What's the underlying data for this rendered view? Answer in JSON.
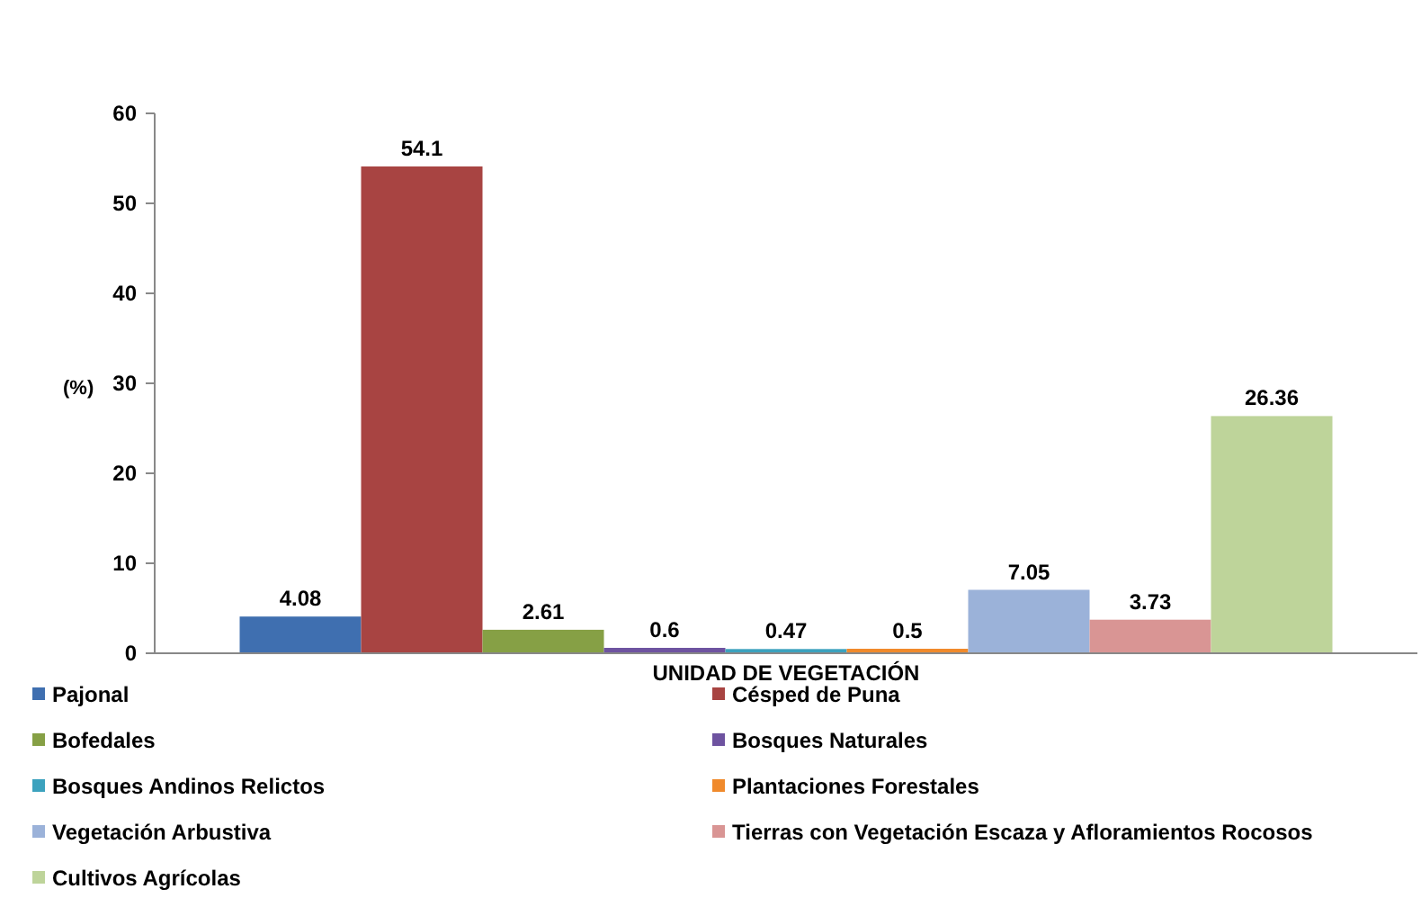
{
  "chart_data": {
    "type": "bar",
    "categories": [
      "UNIDAD DE VEGETACIÓN"
    ],
    "ylabel": "(%)",
    "ylim": [
      0,
      60
    ],
    "yticks": [
      0,
      10,
      20,
      30,
      40,
      50,
      60
    ],
    "data_labels": true,
    "legend": "bottom",
    "series": [
      {
        "name": "Pajonal",
        "color": "#3f6fb0",
        "values": [
          4.08
        ]
      },
      {
        "name": "Césped de Puna",
        "color": "#a84442",
        "values": [
          54.1
        ]
      },
      {
        "name": "Bofedales",
        "color": "#86a045",
        "values": [
          2.61
        ]
      },
      {
        "name": "Bosques Naturales",
        "color": "#6e53a0",
        "values": [
          0.6
        ]
      },
      {
        "name": "Bosques Andinos Relictos",
        "color": "#3ca2be",
        "values": [
          0.47
        ]
      },
      {
        "name": "Plantaciones Forestales",
        "color": "#f08a2c",
        "values": [
          0.5
        ]
      },
      {
        "name": "Vegetación Arbustiva",
        "color": "#9bb2d9",
        "values": [
          7.05
        ]
      },
      {
        "name": "Tierras con Vegetación Escaza y Afloramientos Rocosos",
        "color": "#d99594",
        "values": [
          3.73
        ]
      },
      {
        "name": "Cultivos Agrícolas",
        "color": "#bed49a",
        "values": [
          26.36
        ]
      }
    ]
  }
}
